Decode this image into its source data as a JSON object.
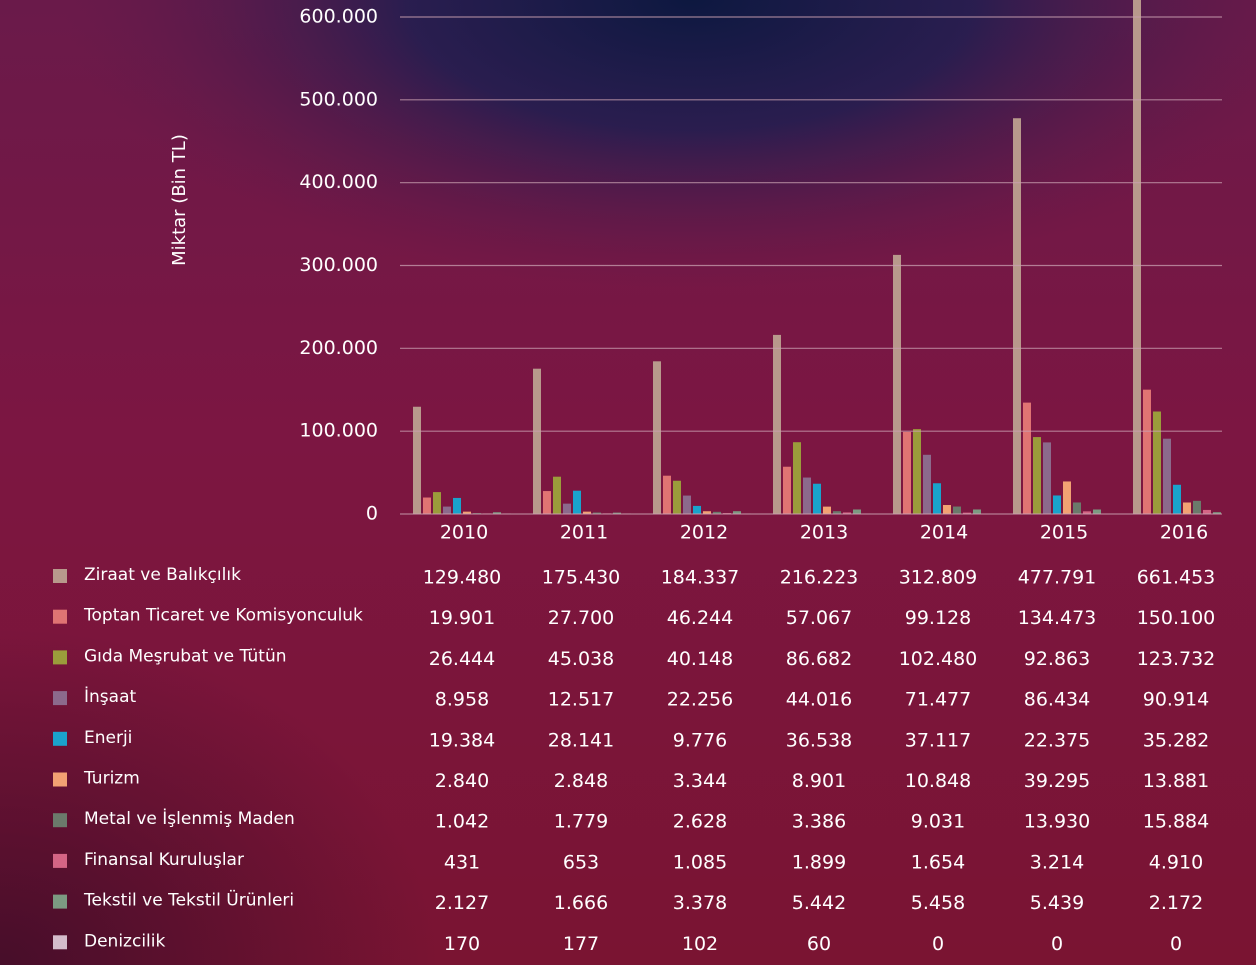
{
  "chart_data": {
    "type": "bar",
    "ylabel": "Miktar (Bin TL)",
    "categories": [
      "2010",
      "2011",
      "2012",
      "2013",
      "2014",
      "2015",
      "2016"
    ],
    "ylim": [
      0,
      600000
    ],
    "yticks": [
      0,
      {
        "value": 100000,
        "label": "100.000"
      },
      {
        "value": 200000,
        "label": "200.000"
      },
      {
        "value": 300000,
        "label": "300.000"
      },
      {
        "value": 400000,
        "label": "400.000"
      },
      {
        "value": 500000,
        "label": "500.000"
      },
      {
        "value": 600000,
        "label": "600.000"
      }
    ],
    "grid": true,
    "series": [
      {
        "name": "Ziraat ve Balıkçılık",
        "color": "#b8998c",
        "values": [
          129480,
          175430,
          184337,
          216223,
          312809,
          477791,
          661453
        ],
        "value_labels": [
          "129.480",
          "175.430",
          "184.337",
          "216.223",
          "312.809",
          "477.791",
          "661.453"
        ]
      },
      {
        "name": "Toptan Ticaret ve Komisyonculuk",
        "color": "#e07473",
        "values": [
          19901,
          27700,
          46244,
          57067,
          99128,
          134473,
          150100
        ],
        "value_labels": [
          "19.901",
          "27.700",
          "46.244",
          "57.067",
          "99.128",
          "134.473",
          "150.100"
        ]
      },
      {
        "name": "Gıda Meşrubat ve Tütün",
        "color": "#9b9c3b",
        "values": [
          26444,
          45038,
          40148,
          86682,
          102480,
          92863,
          123732
        ],
        "value_labels": [
          "26.444",
          "45.038",
          "40.148",
          "86.682",
          "102.480",
          "92.863",
          "123.732"
        ]
      },
      {
        "name": "İnşaat",
        "color": "#8c6a8c",
        "values": [
          8958,
          12517,
          22256,
          44016,
          71477,
          86434,
          90914
        ],
        "value_labels": [
          "8.958",
          "12.517",
          "22.256",
          "44.016",
          "71.477",
          "86.434",
          "90.914"
        ]
      },
      {
        "name": "Enerji",
        "color": "#1aa3cc",
        "values": [
          19384,
          28141,
          9776,
          36538,
          37117,
          22375,
          35282
        ],
        "value_labels": [
          "19.384",
          "28.141",
          "9.776",
          "36.538",
          "37.117",
          "22.375",
          "35.282"
        ]
      },
      {
        "name": "Turizm",
        "color": "#f2a273",
        "values": [
          2840,
          2848,
          3344,
          8901,
          10848,
          39295,
          13881
        ],
        "value_labels": [
          "2.840",
          "2.848",
          "3.344",
          "8.901",
          "10.848",
          "39.295",
          "13.881"
        ]
      },
      {
        "name": "Metal ve İşlenmiş Maden",
        "color": "#6b7a6b",
        "values": [
          1042,
          1779,
          2628,
          3386,
          9031,
          13930,
          15884
        ],
        "value_labels": [
          "1.042",
          "1.779",
          "2.628",
          "3.386",
          "9.031",
          "13.930",
          "15.884"
        ]
      },
      {
        "name": "Finansal Kuruluşlar",
        "color": "#d46585",
        "values": [
          431,
          653,
          1085,
          1899,
          1654,
          3214,
          4910
        ],
        "value_labels": [
          "431",
          "653",
          "1.085",
          "1.899",
          "1.654",
          "3.214",
          "4.910"
        ]
      },
      {
        "name": "Tekstil ve Tekstil Ürünleri",
        "color": "#7c9a82",
        "values": [
          2127,
          1666,
          3378,
          5442,
          5458,
          5439,
          2172
        ],
        "value_labels": [
          "2.127",
          "1.666",
          "3.378",
          "5.442",
          "5.458",
          "5.439",
          "2.172"
        ]
      },
      {
        "name": "Denizcilik",
        "color": "#d4bccb",
        "values": [
          170,
          177,
          102,
          60,
          0,
          0,
          0
        ]
      }
    ]
  }
}
